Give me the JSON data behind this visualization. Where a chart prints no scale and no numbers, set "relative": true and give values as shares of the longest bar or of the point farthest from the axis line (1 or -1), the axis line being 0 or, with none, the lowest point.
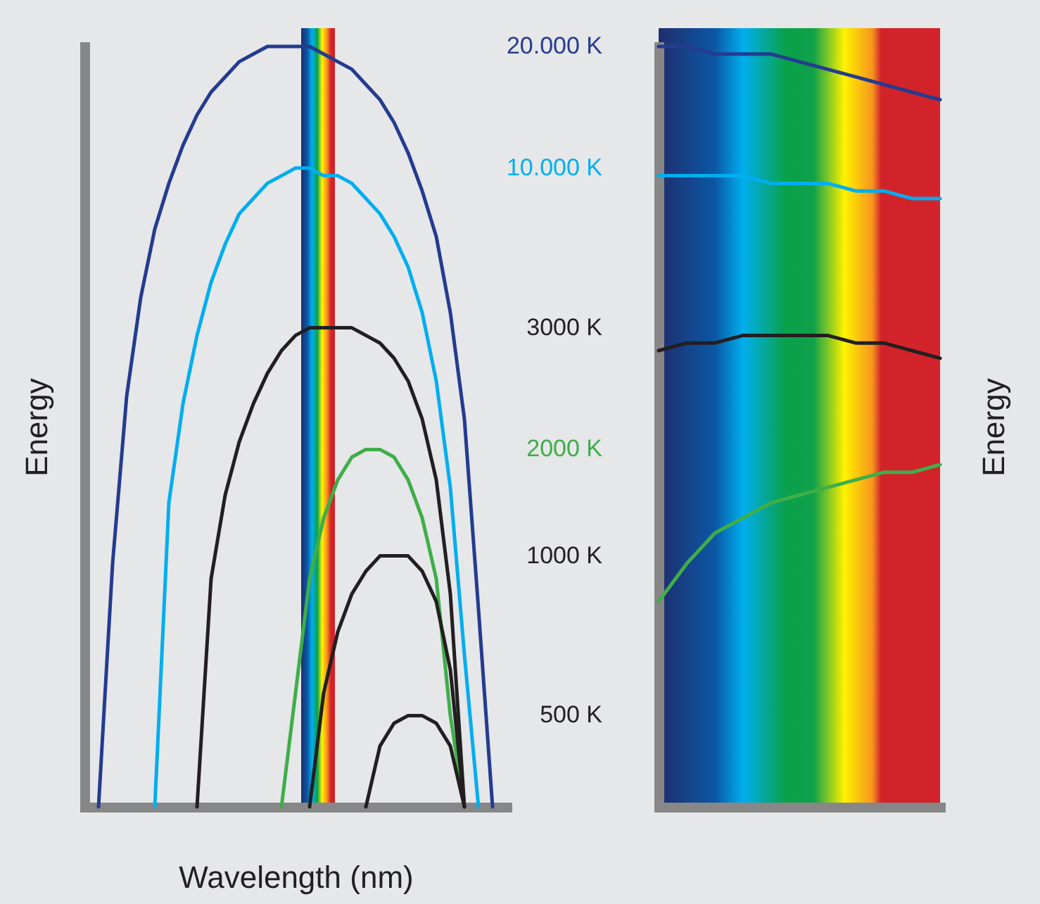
{
  "chart_data": [
    {
      "type": "line",
      "xlabel": "Wavelength (nm)",
      "ylabel": "Energy",
      "relative": true,
      "categories": [
        null,
        null,
        null,
        null,
        null,
        null,
        null,
        null,
        null,
        null,
        null,
        null,
        null,
        null,
        null,
        null,
        null,
        null,
        null,
        null,
        null,
        null,
        null,
        null,
        null,
        null,
        null,
        null,
        null
      ],
      "series": [
        {
          "name": "20.000 K",
          "color": "#243c8f",
          "values": [
            0,
            0.32,
            0.54,
            0.67,
            0.76,
            0.82,
            0.87,
            0.91,
            0.94,
            0.96,
            0.98,
            0.99,
            1,
            1,
            1,
            1,
            0.99,
            0.98,
            0.97,
            0.95,
            0.93,
            0.9,
            0.86,
            0.81,
            0.75,
            0.65,
            0.51,
            0.26,
            0
          ]
        },
        {
          "name": "10.000 K",
          "color": "#00aeef",
          "values": [
            null,
            null,
            null,
            null,
            0,
            0.4,
            0.53,
            0.62,
            0.69,
            0.74,
            0.78,
            0.8,
            0.82,
            0.83,
            0.84,
            0.84,
            0.83,
            0.83,
            0.82,
            0.8,
            0.78,
            0.75,
            0.71,
            0.65,
            0.56,
            0.42,
            0.2,
            0,
            null
          ]
        },
        {
          "name": "3000 K",
          "color": "#231f20",
          "values": [
            null,
            null,
            null,
            null,
            null,
            null,
            null,
            0,
            0.3,
            0.41,
            0.48,
            0.53,
            0.57,
            0.6,
            0.62,
            0.63,
            0.63,
            0.63,
            0.63,
            0.62,
            0.61,
            0.59,
            0.56,
            0.51,
            0.43,
            0.28,
            0,
            null,
            null
          ]
        },
        {
          "name": "2000 K",
          "color": "#3fae49",
          "values": [
            null,
            null,
            null,
            null,
            null,
            null,
            null,
            null,
            null,
            null,
            null,
            null,
            null,
            0,
            0.15,
            0.3,
            0.38,
            0.43,
            0.46,
            0.47,
            0.47,
            0.46,
            0.43,
            0.38,
            0.3,
            0.12,
            0,
            null,
            null
          ]
        },
        {
          "name": "1000 K",
          "color": "#231f20",
          "values": [
            null,
            null,
            null,
            null,
            null,
            null,
            null,
            null,
            null,
            null,
            null,
            null,
            null,
            null,
            null,
            0,
            0.15,
            0.23,
            0.28,
            0.31,
            0.33,
            0.33,
            0.33,
            0.31,
            0.27,
            0.18,
            0,
            null,
            null
          ]
        },
        {
          "name": "500 K",
          "color": "#231f20",
          "values": [
            null,
            null,
            null,
            null,
            null,
            null,
            null,
            null,
            null,
            null,
            null,
            null,
            null,
            null,
            null,
            null,
            null,
            null,
            null,
            0,
            0.08,
            0.11,
            0.12,
            0.12,
            0.11,
            0.08,
            0,
            null,
            null
          ]
        }
      ]
    },
    {
      "type": "line",
      "ylabel": "Energy",
      "relative": true,
      "categories": [
        null,
        null,
        null,
        null,
        null,
        null,
        null,
        null,
        null,
        null,
        null
      ],
      "series": [
        {
          "color": "#243c8f",
          "values": [
            1,
            1,
            0.99,
            0.99,
            0.99,
            0.98,
            0.97,
            0.96,
            0.95,
            0.94,
            0.93
          ]
        },
        {
          "color": "#00aeef",
          "values": [
            0.83,
            0.83,
            0.83,
            0.83,
            0.82,
            0.82,
            0.82,
            0.81,
            0.81,
            0.8,
            0.8
          ]
        },
        {
          "color": "#231f20",
          "values": [
            0.6,
            0.61,
            0.61,
            0.62,
            0.62,
            0.62,
            0.62,
            0.61,
            0.61,
            0.6,
            0.59
          ]
        },
        {
          "color": "#3fae49",
          "values": [
            0.27,
            0.32,
            0.36,
            0.38,
            0.4,
            0.41,
            0.42,
            0.43,
            0.44,
            0.44,
            0.45
          ]
        }
      ]
    }
  ]
}
